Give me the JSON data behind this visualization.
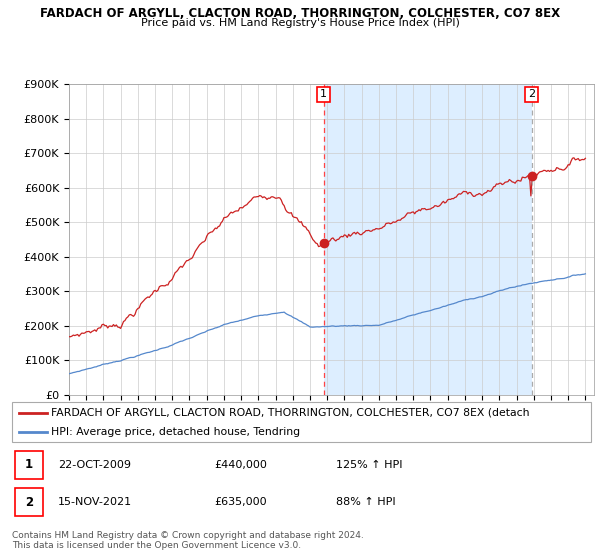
{
  "title1": "FARDACH OF ARGYLL, CLACTON ROAD, THORRINGTON, COLCHESTER, CO7 8EX",
  "title2": "Price paid vs. HM Land Registry's House Price Index (HPI)",
  "ylim": [
    0,
    900000
  ],
  "yticks": [
    0,
    100000,
    200000,
    300000,
    400000,
    500000,
    600000,
    700000,
    800000,
    900000
  ],
  "ytick_labels": [
    "£0",
    "£100K",
    "£200K",
    "£300K",
    "£400K",
    "£500K",
    "£600K",
    "£700K",
    "£800K",
    "£900K"
  ],
  "hpi_color": "#5588cc",
  "price_color": "#cc2222",
  "vline1_color": "#ff4444",
  "vline2_color": "#aaaaaa",
  "shade_color": "#ddeeff",
  "legend_line1": "FARDACH OF ARGYLL, CLACTON ROAD, THORRINGTON, COLCHESTER, CO7 8EX (detach",
  "legend_line2": "HPI: Average price, detached house, Tendring",
  "table_row1": [
    "1",
    "22-OCT-2009",
    "£440,000",
    "125% ↑ HPI"
  ],
  "table_row2": [
    "2",
    "15-NOV-2021",
    "£635,000",
    "88% ↑ HPI"
  ],
  "footer": "Contains HM Land Registry data © Crown copyright and database right 2024.\nThis data is licensed under the Open Government Licence v3.0.",
  "sale1_year": 2009.79,
  "sale1_value": 440000,
  "sale2_year": 2021.87,
  "sale2_value": 635000
}
